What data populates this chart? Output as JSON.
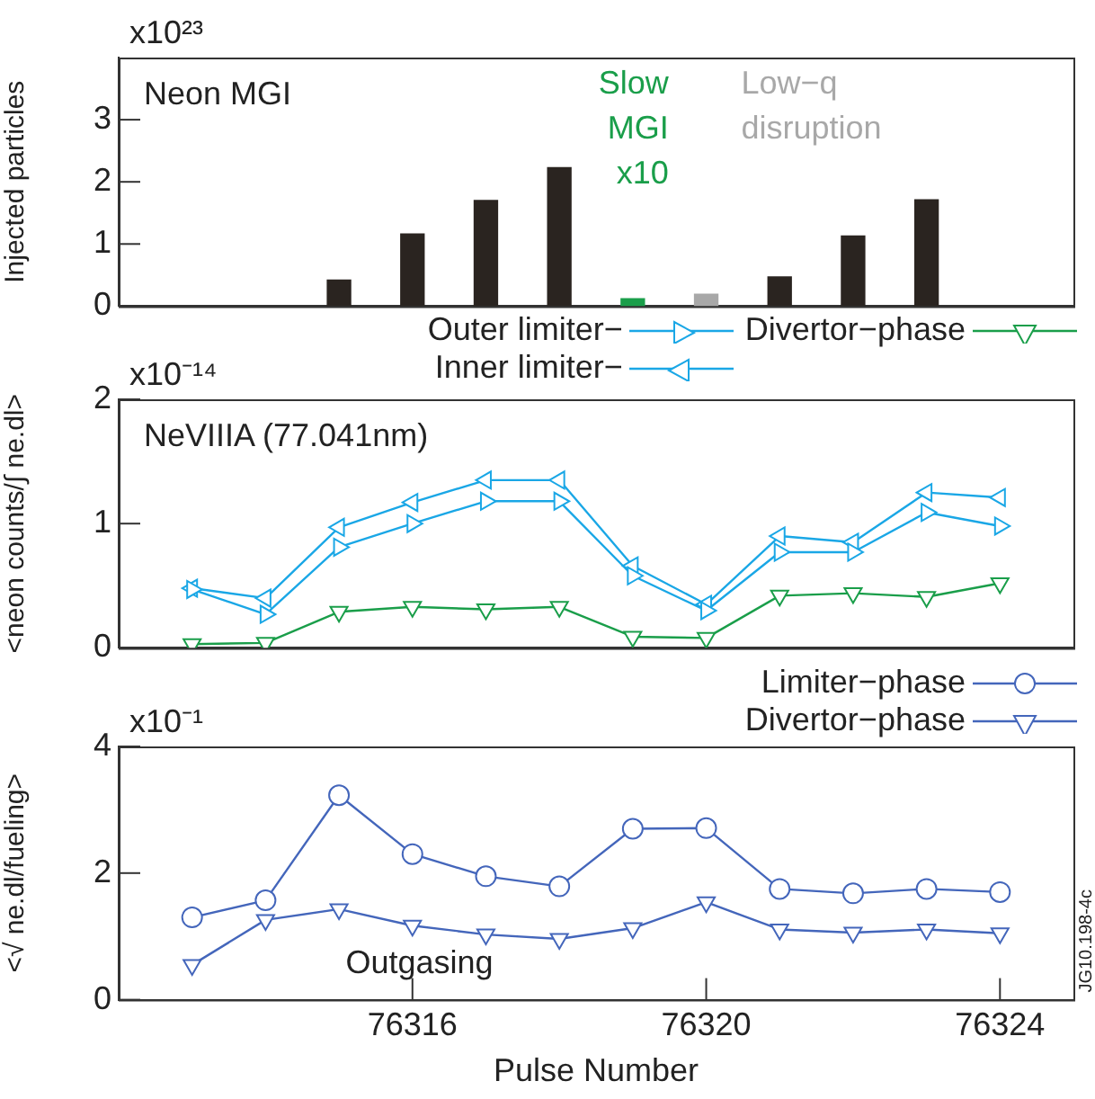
{
  "chart_data": [
    {
      "type": "bar",
      "ylabel": "Injected particles",
      "x": [
        76315,
        76316,
        76317,
        76318,
        76319,
        76320,
        76321,
        76322,
        76323
      ],
      "values": [
        0.42,
        1.16,
        1.7,
        2.23,
        0.12,
        0.19,
        0.47,
        1.13,
        1.71
      ],
      "colors": [
        "#2a2420",
        "#2a2420",
        "#2a2420",
        "#2a2420",
        "#1a9e4a",
        "#a8a8a8",
        "#2a2420",
        "#2a2420",
        "#2a2420"
      ],
      "xlim": [
        76312,
        76325
      ],
      "ylim": [
        0,
        4
      ],
      "yticks": [
        0,
        1,
        2,
        3
      ],
      "tick_labels": "y",
      "legend": false,
      "annotations": [
        "x10²³",
        "Neon MGI",
        "Slow\nMGI\nx10",
        "Low−q\ndisruption"
      ]
    },
    {
      "type": "line",
      "ylabel": "<neon counts/∫ ne.dl>",
      "x": [
        76313,
        76314,
        76315,
        76316,
        76317,
        76318,
        76319,
        76320,
        76321,
        76322,
        76323,
        76324
      ],
      "series": [
        {
          "name": "Outer limiter−",
          "color": "#1aa7e6",
          "marker": "triangle-right",
          "values": [
            0.47,
            0.27,
            0.81,
            1.0,
            1.18,
            1.18,
            0.58,
            0.3,
            0.77,
            0.77,
            1.09,
            0.98
          ]
        },
        {
          "name": "Divertor−phase",
          "color": "#1a9e4a",
          "marker": "triangle-down",
          "values": [
            0.03,
            0.04,
            0.29,
            0.33,
            0.31,
            0.33,
            0.09,
            0.08,
            0.42,
            0.44,
            0.41,
            0.52
          ]
        },
        {
          "name": "Inner limiter−",
          "color": "#1aa7e6",
          "marker": "triangle-left",
          "values": [
            0.48,
            0.4,
            0.97,
            1.17,
            1.35,
            1.35,
            0.66,
            0.35,
            0.9,
            0.85,
            1.25,
            1.21
          ]
        }
      ],
      "xlim": [
        76312,
        76325
      ],
      "ylim": [
        0,
        2
      ],
      "yticks": [
        0,
        1,
        2
      ],
      "tick_labels": "y",
      "legend": "top right",
      "line_style": "solid",
      "annotations": [
        "x10⁻¹⁴",
        "NeVIIIA (77.041nm)"
      ]
    },
    {
      "type": "line",
      "xlabel": "Pulse Number",
      "ylabel": "<√ ne.dl/fueling>",
      "x": [
        76313,
        76314,
        76315,
        76316,
        76317,
        76318,
        76319,
        76320,
        76321,
        76322,
        76323,
        76324
      ],
      "series": [
        {
          "name": "Limiter−phase",
          "color": "#4466bb",
          "marker": "circle",
          "values": [
            1.3,
            1.57,
            3.23,
            2.3,
            1.95,
            1.79,
            2.7,
            2.71,
            1.75,
            1.68,
            1.75,
            1.7
          ]
        },
        {
          "name": "Divertor−phase",
          "color": "#4466bb",
          "marker": "triangle-down",
          "values": [
            0.55,
            1.26,
            1.43,
            1.17,
            1.03,
            0.96,
            1.13,
            1.54,
            1.11,
            1.06,
            1.11,
            1.05
          ]
        }
      ],
      "xlim": [
        76312,
        76325
      ],
      "xticks": [
        76316,
        76320,
        76324
      ],
      "ylim": [
        0,
        4
      ],
      "yticks": [
        0,
        2,
        4
      ],
      "legend": "top right",
      "line_style": "solid",
      "annotations": [
        "x10⁻¹",
        "Outgasing",
        "JG10.198-4c"
      ]
    }
  ]
}
